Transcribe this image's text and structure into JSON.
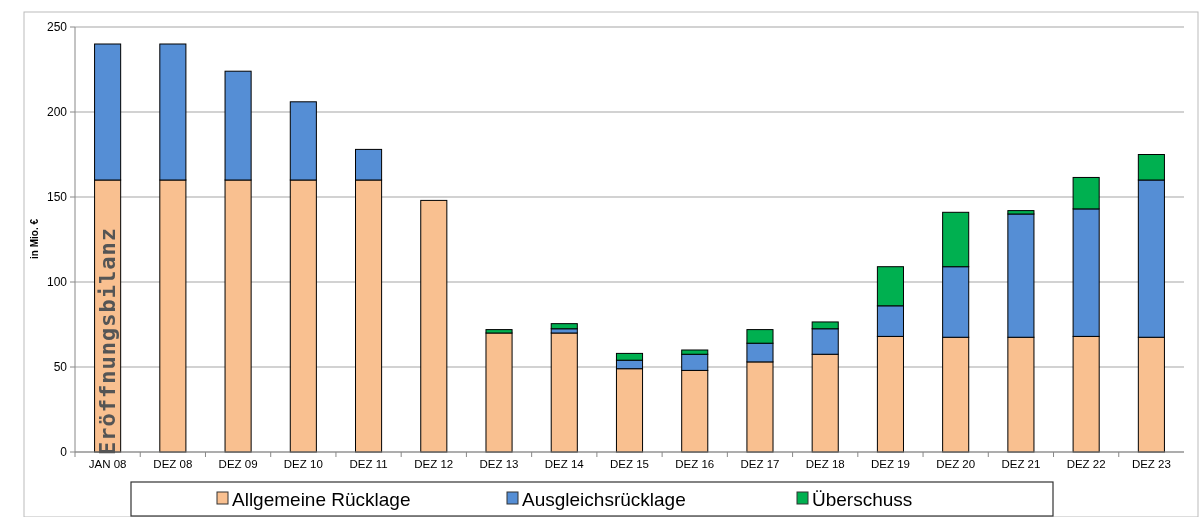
{
  "chart_data": {
    "type": "bar",
    "stacked": true,
    "ylabel": "in Mio. €",
    "categories": [
      "JAN 08",
      "DEZ 08",
      "DEZ 09",
      "DEZ 10",
      "DEZ 11",
      "DEZ 12",
      "DEZ 13",
      "DEZ 14",
      "DEZ 15",
      "DEZ 16",
      "DEZ 17",
      "DEZ 18",
      "DEZ 19",
      "DEZ 20",
      "DEZ 21",
      "DEZ 22",
      "DEZ 23"
    ],
    "series": [
      {
        "name": "Allgemeine Rücklage",
        "color": "#f9c090",
        "values": [
          160,
          160,
          160,
          160,
          160,
          148,
          70,
          70,
          49,
          48,
          53,
          57.5,
          68,
          67.5,
          67.5,
          68,
          67.5
        ]
      },
      {
        "name": "Ausgleichsrücklage",
        "color": "#558ed5",
        "values": [
          80,
          80,
          64,
          46,
          18,
          0,
          0,
          2.5,
          5,
          9.5,
          11,
          15,
          18,
          41.5,
          72.5,
          75,
          92.5
        ]
      },
      {
        "name": "Überschuss",
        "color": "#00b050",
        "values": [
          0,
          0,
          0,
          0,
          0,
          0,
          2,
          3,
          4,
          2.5,
          8,
          4,
          23,
          32,
          2,
          18.5,
          15
        ]
      }
    ],
    "ylim": [
      0,
      250
    ],
    "yticks": [
      0,
      50,
      100,
      150,
      200,
      250
    ],
    "grid": "y",
    "legend": "bottom",
    "annotations": [
      "Eröffnungsbilanz"
    ]
  }
}
